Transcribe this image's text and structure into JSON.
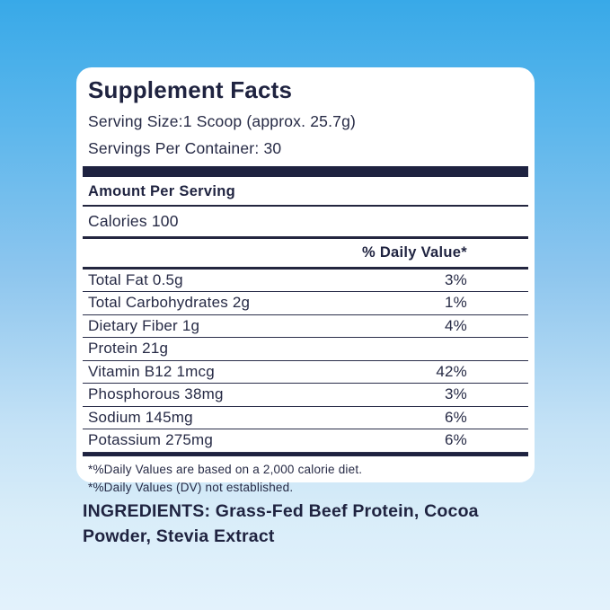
{
  "background": {
    "gradient_top": "#38a9e8",
    "gradient_bottom": "#e3f2fc"
  },
  "colors": {
    "panel_background": "#ffffff",
    "navy_text": "#23263f",
    "divider_navy": "#1e2240"
  },
  "panel": {
    "title": "Supplement Facts",
    "serving_size": "Serving Size:1 Scoop (approx. 25.7g)",
    "servings_per_container": "Servings Per Container: 30",
    "amount_per_serving": "Amount Per Serving",
    "calories": "Calories 100",
    "daily_value_header": "% Daily Value*",
    "rows": [
      {
        "label": "Total Fat 0.5g",
        "value": "3%"
      },
      {
        "label": "Total Carbohydrates 2g",
        "value": "1%"
      },
      {
        "label": "Dietary Fiber 1g",
        "value": "4%"
      },
      {
        "label": "Protein 21g",
        "value": ""
      },
      {
        "label": "Vitamin B12  1mcg",
        "value": "42%"
      },
      {
        "label": "Phosphorous 38mg",
        "value": "3%"
      },
      {
        "label": "Sodium 145mg",
        "value": "6%"
      },
      {
        "label": "Potassium 275mg",
        "value": "6%"
      }
    ],
    "footnotes": [
      "*%Daily Values are based on a 2,000 calorie diet.",
      "*%Daily Values (DV) not established."
    ]
  },
  "ingredients": {
    "text": "INGREDIENTS: Grass-Fed Beef Protein, Cocoa Powder, Stevia Extract"
  }
}
